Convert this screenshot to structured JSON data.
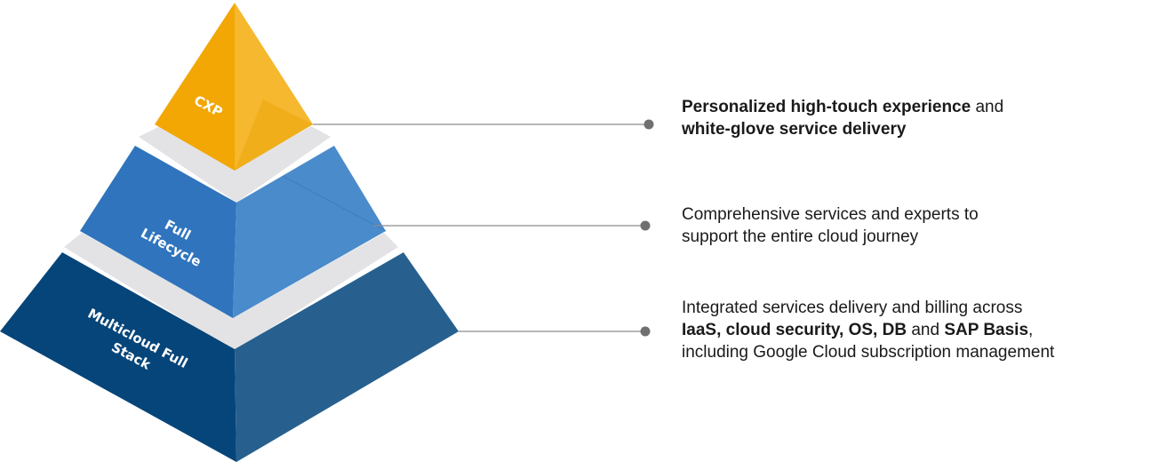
{
  "tiers": [
    {
      "name": "CXP",
      "color_front": "#f2a705",
      "color_side": "#f5b82e",
      "description": {
        "line1": {
          "bold": "Personalized high-touch experience",
          "rest": " and"
        },
        "line2": {
          "bold": "white-glove service delivery"
        }
      }
    },
    {
      "name": "Full Lifecycle",
      "label_lines": [
        "Full",
        "Lifecycle"
      ],
      "color_front": "#2f74bd",
      "color_side": "#4a8bcb",
      "description": {
        "line1": "Comprehensive services and experts to",
        "line2": "support the entire cloud journey"
      }
    },
    {
      "name": "Multicloud Full Stack",
      "label_lines": [
        "Multicloud Full",
        "Stack"
      ],
      "color_front": "#064579",
      "color_side": "#27608f",
      "description": {
        "line1": "Integrated services delivery and billing across",
        "line2": {
          "b1": "IaaS, cloud security, OS, DB",
          "t1": " and ",
          "b2": "SAP Basis",
          "t2": ","
        },
        "line3": "including Google Cloud subscription management"
      }
    }
  ],
  "colors": {
    "band": "#e3e3e5",
    "connector": "#8c8c8c",
    "dot": "#707070"
  }
}
